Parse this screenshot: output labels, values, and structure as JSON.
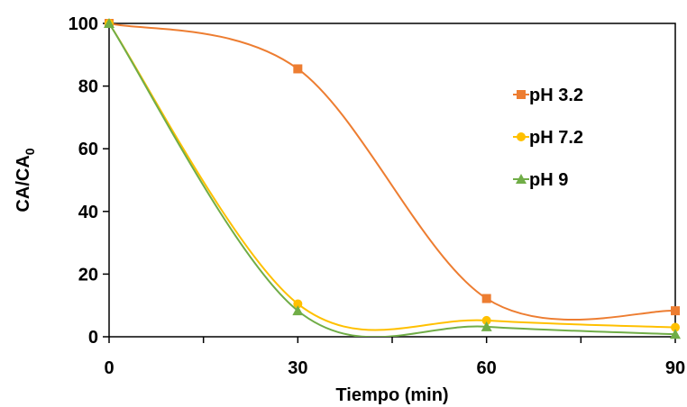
{
  "chart_data": {
    "type": "line",
    "title": "",
    "xlabel": "Tiempo (min)",
    "ylabel": "CA/CA",
    "ylabel_subscript": "0",
    "x": [
      0,
      30,
      60,
      90
    ],
    "xlim": [
      0,
      90
    ],
    "ylim": [
      0,
      100
    ],
    "x_ticks": [
      0,
      30,
      60,
      90
    ],
    "y_ticks": [
      0,
      20,
      40,
      60,
      80,
      100
    ],
    "grid": false,
    "smooth": true,
    "legend_position": "right",
    "series": [
      {
        "name": "pH 3.2",
        "values": [
          100,
          85.5,
          12.2,
          8.3
        ],
        "color": "#ED7D31",
        "marker": "square"
      },
      {
        "name": "pH 7.2",
        "values": [
          100,
          10.5,
          5.2,
          3.0
        ],
        "color": "#FFC000",
        "marker": "circle"
      },
      {
        "name": "pH 9",
        "values": [
          100,
          8.3,
          3.2,
          0.8
        ],
        "color": "#70AD47",
        "marker": "triangle"
      }
    ]
  }
}
